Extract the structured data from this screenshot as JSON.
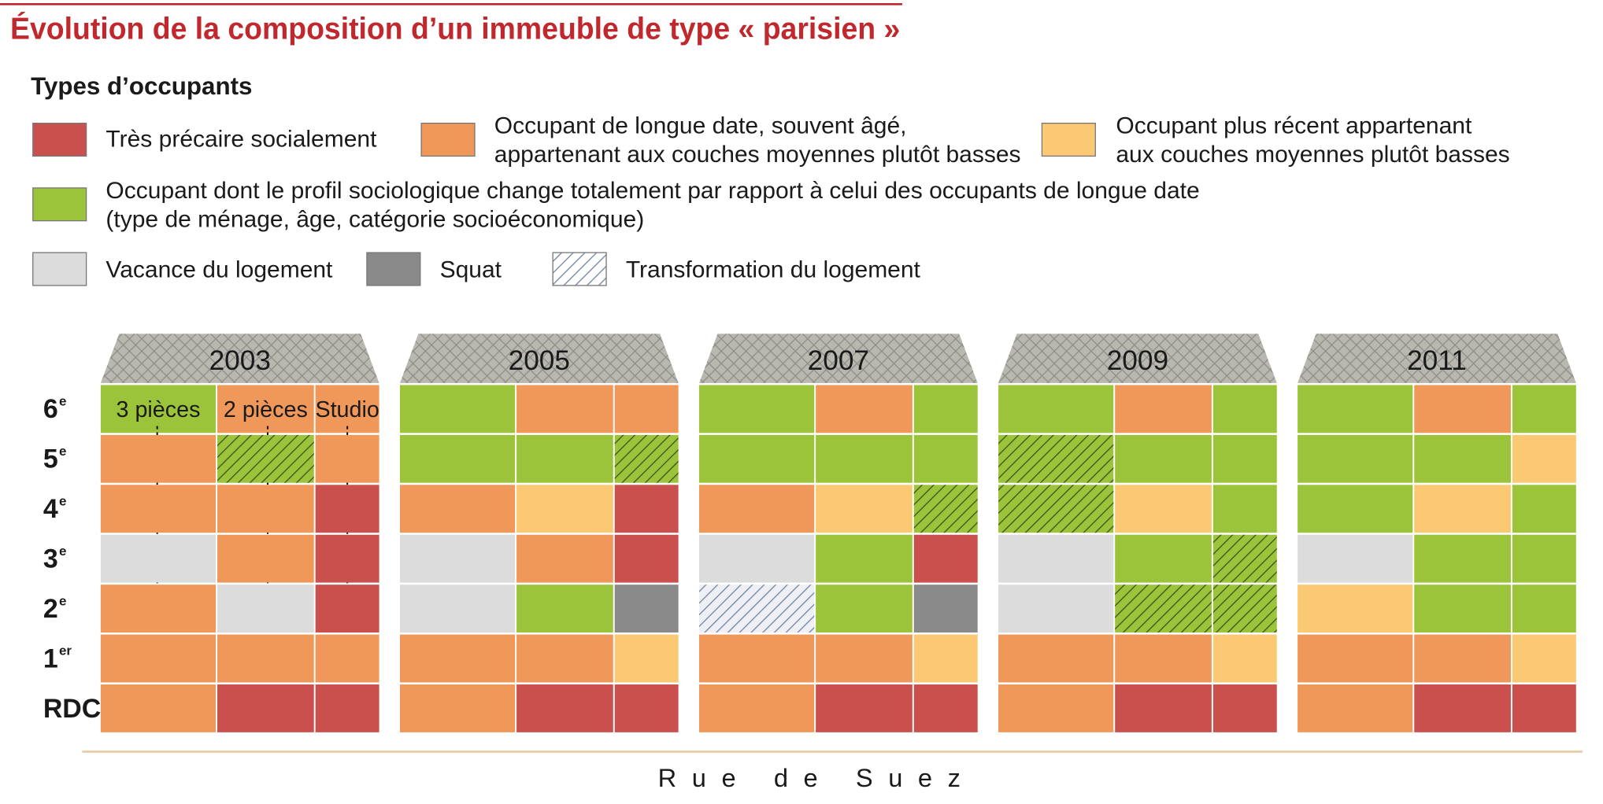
{
  "title": "Évolution de la composition d’un immeuble de type « parisien »",
  "legend": {
    "heading": "Types d’occupants",
    "items": [
      {
        "lines": [
          "Très précaire socialement"
        ],
        "color": "#c9504d"
      },
      {
        "lines": [
          "Occupant de longue date, souvent âgé,",
          "appartenant aux couches moyennes plutôt basses"
        ],
        "color": "#f0975a"
      },
      {
        "lines": [
          "Occupant plus récent appartenant",
          "aux couches moyennes plutôt basses"
        ],
        "color": "#fbc873"
      },
      {
        "lines": [
          "Occupant dont le profil sociologique change totalement par rapport à celui des occupants de longue date",
          "(type de ménage, âge, catégorie socioéconomique)"
        ],
        "color": "#9cc43a"
      },
      {
        "lines": [
          "Vacance du logement"
        ],
        "color": "#dcdcdc"
      },
      {
        "lines": [
          "Squat"
        ],
        "color": "#8a8a8a"
      },
      {
        "lines": [
          "Transformation du logement"
        ],
        "color": "#ffffff",
        "hatch": "#6f84a3"
      }
    ]
  },
  "floors": [
    {
      "label": "6",
      "sup": "e"
    },
    {
      "label": "5",
      "sup": "e"
    },
    {
      "label": "4",
      "sup": "e"
    },
    {
      "label": "3",
      "sup": "e"
    },
    {
      "label": "2",
      "sup": "e"
    },
    {
      "label": "1",
      "sup": "er"
    },
    {
      "label": "RDC"
    }
  ],
  "apartments": [
    "3 pièces",
    "2 pièces",
    "Studio"
  ],
  "buildings": [
    {
      "year": "2003",
      "cells": [
        [
          "#9cc43a",
          "#f0975a",
          "#f0975a"
        ],
        [
          "#f0975a",
          {
            "color": "#9cc43a",
            "hatch": "#3d4f1e"
          },
          "#f0975a"
        ],
        [
          "#f0975a",
          "#f0975a",
          "#c9504d"
        ],
        [
          "#dcdcdc",
          "#f0975a",
          "#c9504d"
        ],
        [
          "#f0975a",
          "#dcdcdc",
          "#c9504d"
        ],
        [
          "#f0975a",
          "#f0975a",
          "#f0975a"
        ],
        [
          "#f0975a",
          "#c9504d",
          "#c9504d"
        ]
      ]
    },
    {
      "year": "2005",
      "cells": [
        [
          "#9cc43a",
          "#f0975a",
          "#f0975a"
        ],
        [
          "#9cc43a",
          "#9cc43a",
          {
            "color": "#9cc43a",
            "hatch": "#3d4f1e"
          }
        ],
        [
          "#f0975a",
          "#fbc873",
          "#c9504d"
        ],
        [
          "#dcdcdc",
          "#f0975a",
          "#c9504d"
        ],
        [
          "#dcdcdc",
          "#9cc43a",
          "#8a8a8a"
        ],
        [
          "#f0975a",
          "#f0975a",
          "#fbc873"
        ],
        [
          "#f0975a",
          "#c9504d",
          "#c9504d"
        ]
      ]
    },
    {
      "year": "2007",
      "cells": [
        [
          "#9cc43a",
          "#f0975a",
          "#9cc43a"
        ],
        [
          "#9cc43a",
          "#9cc43a",
          "#9cc43a"
        ],
        [
          "#f0975a",
          "#fbc873",
          {
            "color": "#9cc43a",
            "hatch": "#3d4f1e"
          }
        ],
        [
          "#dcdcdc",
          "#9cc43a",
          "#c9504d"
        ],
        [
          {
            "color": "#eef0f5",
            "hatch": "#6f84a3"
          },
          "#9cc43a",
          "#8a8a8a"
        ],
        [
          "#f0975a",
          "#f0975a",
          "#fbc873"
        ],
        [
          "#f0975a",
          "#c9504d",
          "#c9504d"
        ]
      ]
    },
    {
      "year": "2009",
      "cells": [
        [
          "#9cc43a",
          "#f0975a",
          "#9cc43a"
        ],
        [
          {
            "color": "#9cc43a",
            "hatch": "#3d4f1e"
          },
          "#9cc43a",
          "#9cc43a"
        ],
        [
          {
            "color": "#9cc43a",
            "hatch": "#3d4f1e"
          },
          "#fbc873",
          "#9cc43a"
        ],
        [
          "#dcdcdc",
          "#9cc43a",
          {
            "color": "#9cc43a",
            "hatch": "#3d4f1e"
          }
        ],
        [
          "#dcdcdc",
          {
            "color": "#9cc43a",
            "hatch": "#3d4f1e"
          },
          {
            "color": "#9cc43a",
            "hatch": "#3d4f1e"
          }
        ],
        [
          "#f0975a",
          "#f0975a",
          "#fbc873"
        ],
        [
          "#f0975a",
          "#c9504d",
          "#c9504d"
        ]
      ]
    },
    {
      "year": "2011",
      "cells": [
        [
          "#9cc43a",
          "#f0975a",
          "#9cc43a"
        ],
        [
          "#9cc43a",
          "#9cc43a",
          "#fbc873"
        ],
        [
          "#9cc43a",
          "#fbc873",
          "#9cc43a"
        ],
        [
          "#dcdcdc",
          "#9cc43a",
          "#9cc43a"
        ],
        [
          "#fbc873",
          "#9cc43a",
          "#9cc43a"
        ],
        [
          "#f0975a",
          "#f0975a",
          "#fbc873"
        ],
        [
          "#f0975a",
          "#c9504d",
          "#c9504d"
        ]
      ]
    }
  ],
  "street": "Rue de Suez"
}
